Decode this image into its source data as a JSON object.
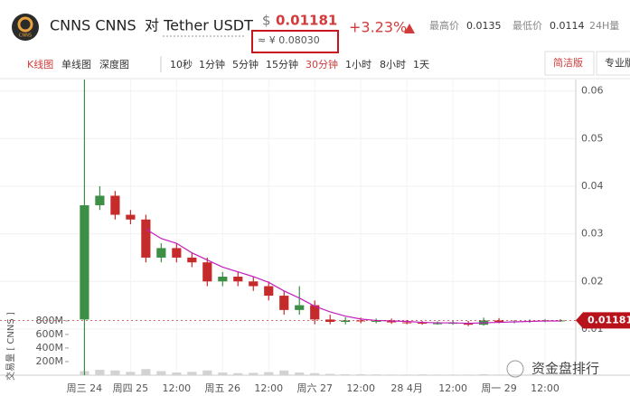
{
  "header": {
    "logo": "CNNS",
    "name": "CNNS CNNS",
    "pair": "对 Tether USDT",
    "currency": "$",
    "price": "0.01181",
    "cny": "≈ ¥ 0.08030",
    "change": "+3.23%",
    "high_label": "最高价",
    "high": "0.0135",
    "low_label": "最低价",
    "low": "0.0114",
    "volume_label": "24H量"
  },
  "toolbar": {
    "chart_types": [
      "K线图",
      "单线图",
      "深度图"
    ],
    "active_chart_type": 0,
    "intervals": [
      "10秒",
      "1分钟",
      "5分钟",
      "15分钟",
      "30分钟",
      "1小时",
      "8小时",
      "1天"
    ],
    "active_interval": 4,
    "modes": [
      "简洁版",
      "专业版"
    ],
    "active_mode": 0
  },
  "watermark": "资金盘排行",
  "chart_data": {
    "type": "candlestick",
    "x": [
      12,
      16,
      20,
      24,
      28,
      32,
      36,
      40,
      44,
      48,
      52,
      56,
      60,
      64,
      68,
      72,
      76,
      80,
      84,
      88,
      92,
      96,
      100,
      104,
      108,
      112,
      116,
      120,
      124,
      128,
      132,
      136
    ],
    "open": [
      0.012,
      0.036,
      0.038,
      0.034,
      0.033,
      0.025,
      0.027,
      0.025,
      0.024,
      0.02,
      0.021,
      0.02,
      0.019,
      0.017,
      0.014,
      0.015,
      0.012,
      0.0115,
      0.0118,
      0.0116,
      0.0117,
      0.0114,
      0.0113,
      0.0112,
      0.0112,
      0.0113,
      0.0109,
      0.0118,
      0.0115,
      0.0116,
      0.0117,
      0.0118
    ],
    "high": [
      0.0624,
      0.04,
      0.039,
      0.035,
      0.034,
      0.028,
      0.028,
      0.026,
      0.025,
      0.022,
      0.022,
      0.021,
      0.02,
      0.018,
      0.019,
      0.016,
      0.013,
      0.0125,
      0.0124,
      0.0122,
      0.0122,
      0.0119,
      0.0117,
      0.0116,
      0.0117,
      0.0117,
      0.0124,
      0.0123,
      0.0119,
      0.012,
      0.0121,
      0.0121
    ],
    "low": [
      0.0003,
      0.035,
      0.033,
      0.032,
      0.024,
      0.024,
      0.024,
      0.023,
      0.019,
      0.019,
      0.019,
      0.018,
      0.016,
      0.013,
      0.013,
      0.011,
      0.011,
      0.011,
      0.0112,
      0.0112,
      0.0111,
      0.011,
      0.0109,
      0.0109,
      0.0109,
      0.0106,
      0.0107,
      0.0112,
      0.0112,
      0.0113,
      0.0114,
      0.0115
    ],
    "close": [
      0.036,
      0.038,
      0.034,
      0.033,
      0.025,
      0.027,
      0.025,
      0.024,
      0.02,
      0.021,
      0.02,
      0.019,
      0.017,
      0.014,
      0.015,
      0.012,
      0.0115,
      0.0118,
      0.0116,
      0.0117,
      0.0114,
      0.0113,
      0.0112,
      0.0112,
      0.0113,
      0.0109,
      0.0118,
      0.0115,
      0.0116,
      0.0117,
      0.0118,
      0.0118
    ],
    "up_color": "#3d8f46",
    "down_color": "#c62b2b",
    "ma": {
      "color": "#c21fbd",
      "values": [
        null,
        null,
        null,
        null,
        0.031,
        0.029,
        0.028,
        0.026,
        0.0245,
        0.023,
        0.022,
        0.021,
        0.0198,
        0.018,
        0.0165,
        0.0148,
        0.0136,
        0.0127,
        0.0121,
        0.0118,
        0.0117,
        0.0116,
        0.0114,
        0.0113,
        0.0113,
        0.0112,
        0.0113,
        0.0114,
        0.0115,
        0.0116,
        0.0117,
        0.0117
      ]
    },
    "volume": {
      "label": "交易量 [ CNNS ]",
      "color": "#d3d3d3",
      "values": [
        60000000,
        80000000,
        70000000,
        50000000,
        90000000,
        60000000,
        40000000,
        50000000,
        70000000,
        40000000,
        30000000,
        35000000,
        45000000,
        70000000,
        40000000,
        30000000,
        20000000,
        15000000,
        15000000,
        12000000,
        10000000,
        10000000,
        12000000,
        10000000,
        10000000,
        10000000,
        15000000,
        10000000,
        10000000,
        10000000,
        10000000,
        10000000
      ],
      "ylim": [
        0,
        4350000000
      ],
      "yticks": [
        {
          "value": 200000000,
          "label": "200M"
        },
        {
          "value": 400000000,
          "label": "400M"
        },
        {
          "value": 600000000,
          "label": "600M"
        },
        {
          "value": 800000000,
          "label": "800M"
        }
      ]
    },
    "xlim": [
      -10,
      140
    ],
    "xticks": [
      {
        "value": 12,
        "label": "周三 24"
      },
      {
        "value": 24,
        "label": "周四 25"
      },
      {
        "value": 36,
        "label": "12:00"
      },
      {
        "value": 48,
        "label": "周五 26"
      },
      {
        "value": 60,
        "label": "12:00"
      },
      {
        "value": 72,
        "label": "周六 27"
      },
      {
        "value": 84,
        "label": "12:00"
      },
      {
        "value": 96,
        "label": "28 4月"
      },
      {
        "value": 108,
        "label": "12:00"
      },
      {
        "value": 120,
        "label": "周一 29"
      },
      {
        "value": 132,
        "label": "12:00"
      }
    ],
    "ylim": [
      0.0003,
      0.0624
    ],
    "yticks": [
      0.01,
      0.02,
      0.03,
      0.04,
      0.05,
      0.06
    ],
    "grid": true,
    "last_price": 0.01181,
    "last_price_color": "#b8121b"
  }
}
